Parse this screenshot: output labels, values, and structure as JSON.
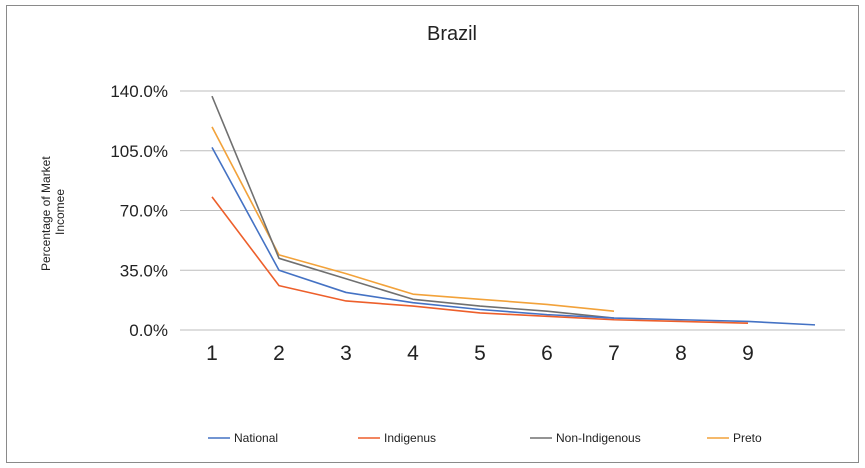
{
  "chart_data": {
    "type": "line",
    "title": "Brazil",
    "ylabel_lines": [
      "Percentage of Market",
      "Incomee"
    ],
    "ylim": [
      0,
      140
    ],
    "yticks": [
      0,
      35,
      70,
      105,
      140
    ],
    "ytick_labels": [
      "0.0%",
      "35.0%",
      "70.0%",
      "105.0%",
      "140.0%"
    ],
    "xtick_labels": [
      "1",
      "2",
      "3",
      "4",
      "5",
      "6",
      "7",
      "8",
      "9"
    ],
    "grid": true,
    "legend_position": "bottom",
    "series": [
      {
        "name": "National",
        "color": "#4472c4",
        "x": [
          1,
          2,
          3,
          4,
          5,
          6,
          7,
          8,
          9,
          10
        ],
        "y": [
          107,
          35,
          22,
          16,
          12,
          9,
          7,
          6,
          5,
          3
        ]
      },
      {
        "name": "Indigenus",
        "color": "#ed5f2b",
        "x": [
          1,
          2,
          3,
          4,
          5,
          6,
          7,
          8,
          9
        ],
        "y": [
          78,
          26,
          17,
          14,
          10,
          8,
          6,
          5,
          4
        ]
      },
      {
        "name": "Non-Indigenous",
        "color": "#707070",
        "x": [
          1,
          2,
          3,
          4,
          5,
          6,
          7
        ],
        "y": [
          137,
          42,
          30,
          18,
          14,
          11,
          7
        ]
      },
      {
        "name": "Preto",
        "color": "#f2a23a",
        "x": [
          1,
          2,
          3,
          4,
          5,
          6,
          7
        ],
        "y": [
          119,
          44,
          33,
          21,
          18,
          15,
          11
        ]
      }
    ]
  }
}
